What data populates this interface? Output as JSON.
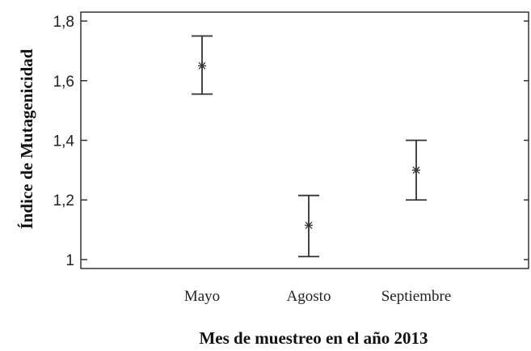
{
  "chart_data": {
    "type": "scatter",
    "subtype": "error-bar",
    "xlabel": "Mes de muestreo en el año 2013",
    "ylabel": "Índice de Mutagenicidad",
    "categories": [
      "Mayo",
      "Agosto",
      "Septiembre"
    ],
    "points": [
      {
        "category": "Mayo",
        "mean": 1.65,
        "lower": 1.555,
        "upper": 1.75
      },
      {
        "category": "Agosto",
        "mean": 1.115,
        "lower": 1.01,
        "upper": 1.215
      },
      {
        "category": "Septiembre",
        "mean": 1.3,
        "lower": 1.2,
        "upper": 1.4
      }
    ],
    "yticks": [
      "1",
      "1,2",
      "1,4",
      "1,6",
      "1,8"
    ],
    "ytick_values": [
      1.0,
      1.2,
      1.4,
      1.6,
      1.8
    ],
    "ylim": [
      0.97,
      1.83
    ],
    "grid": false,
    "marker": "asterisk",
    "color": "#333333"
  }
}
